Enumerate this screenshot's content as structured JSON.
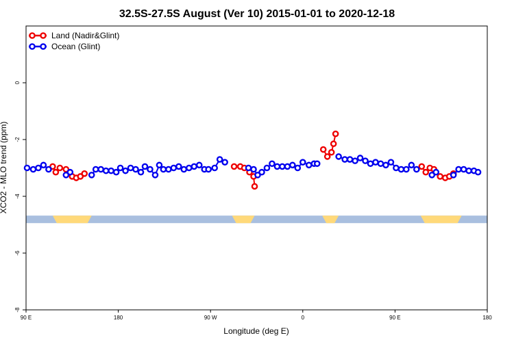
{
  "chart_data": {
    "type": "line",
    "title": "32.5S-27.5S August (Ver 10)   2015-01-01 to 2020-12-18",
    "xlabel": "Longitude (deg E)",
    "ylabel": "XCO2 - MLO trend (ppm)",
    "x_ticks": [
      {
        "value": 90,
        "label": "90 E"
      },
      {
        "value": 180,
        "label": "180"
      },
      {
        "value": 270,
        "label": "90 W"
      },
      {
        "value": 360,
        "label": "0"
      },
      {
        "value": 450,
        "label": "90 E"
      },
      {
        "value": 540,
        "label": "180"
      }
    ],
    "y_ticks": [
      {
        "value": 0,
        "label": "0"
      },
      {
        "value": -2,
        "label": "-2"
      },
      {
        "value": -4,
        "label": "-4"
      },
      {
        "value": -6,
        "label": "-6"
      },
      {
        "value": -8,
        "label": "-8"
      }
    ],
    "xlim": [
      90,
      540
    ],
    "ylim": [
      -8,
      2
    ],
    "legend_position": "top-left",
    "land_band": {
      "y": -4.8,
      "ocean_color": "#a9bfdf",
      "land_color": "#ffd97a",
      "land_ranges": [
        [
          116,
          154
        ],
        [
          291,
          313
        ],
        [
          379,
          395
        ],
        [
          475,
          515
        ]
      ]
    },
    "series": [
      {
        "name": "Land (Nadir&Glint)",
        "color": "#ee0000",
        "points": [
          [
            116,
            -2.95
          ],
          [
            119,
            -3.15
          ],
          [
            123,
            -3.0
          ],
          [
            129,
            -3.05
          ],
          [
            135,
            -3.3
          ],
          [
            139,
            -3.35
          ],
          [
            143,
            -3.3
          ],
          [
            147,
            -3.2
          ],
          [
            293,
            -2.95
          ],
          [
            299,
            -2.95
          ],
          [
            303,
            -3.0
          ],
          [
            308,
            -3.15
          ],
          [
            312,
            -3.3
          ],
          [
            313,
            -3.65
          ],
          [
            380,
            -2.35
          ],
          [
            384,
            -2.6
          ],
          [
            388,
            -2.45
          ],
          [
            390,
            -2.15
          ],
          [
            392,
            -1.8
          ],
          [
            476,
            -2.95
          ],
          [
            480,
            -3.15
          ],
          [
            484,
            -3.0
          ],
          [
            488,
            -3.05
          ],
          [
            494,
            -3.3
          ],
          [
            499,
            -3.35
          ],
          [
            503,
            -3.3
          ],
          [
            507,
            -3.2
          ]
        ]
      },
      {
        "name": "Ocean (Glint)",
        "color": "#0000ee",
        "points": [
          [
            91,
            -3.0
          ],
          [
            97,
            -3.05
          ],
          [
            102,
            -3.0
          ],
          [
            107,
            -2.9
          ],
          [
            112,
            -3.05
          ],
          [
            129,
            -3.25
          ],
          [
            133,
            -3.15
          ],
          [
            154,
            -3.25
          ],
          [
            158,
            -3.05
          ],
          [
            163,
            -3.05
          ],
          [
            168,
            -3.1
          ],
          [
            173,
            -3.1
          ],
          [
            178,
            -3.15
          ],
          [
            182,
            -3.0
          ],
          [
            187,
            -3.1
          ],
          [
            192,
            -3.0
          ],
          [
            197,
            -3.05
          ],
          [
            202,
            -3.15
          ],
          [
            206,
            -2.95
          ],
          [
            211,
            -3.05
          ],
          [
            216,
            -3.25
          ],
          [
            220,
            -2.9
          ],
          [
            224,
            -3.05
          ],
          [
            229,
            -3.05
          ],
          [
            234,
            -3.0
          ],
          [
            239,
            -2.95
          ],
          [
            244,
            -3.05
          ],
          [
            249,
            -3.0
          ],
          [
            254,
            -2.95
          ],
          [
            259,
            -2.9
          ],
          [
            264,
            -3.05
          ],
          [
            268,
            -3.05
          ],
          [
            274,
            -3.0
          ],
          [
            279,
            -2.7
          ],
          [
            284,
            -2.8
          ],
          [
            307,
            -3.0
          ],
          [
            312,
            -3.05
          ],
          [
            316,
            -3.25
          ],
          [
            320,
            -3.15
          ],
          [
            325,
            -3.0
          ],
          [
            330,
            -2.85
          ],
          [
            335,
            -2.95
          ],
          [
            340,
            -2.95
          ],
          [
            345,
            -2.95
          ],
          [
            350,
            -2.9
          ],
          [
            355,
            -3.0
          ],
          [
            360,
            -2.8
          ],
          [
            366,
            -2.9
          ],
          [
            371,
            -2.85
          ],
          [
            374,
            -2.85
          ],
          [
            395,
            -2.6
          ],
          [
            401,
            -2.7
          ],
          [
            406,
            -2.7
          ],
          [
            411,
            -2.75
          ],
          [
            416,
            -2.65
          ],
          [
            421,
            -2.75
          ],
          [
            426,
            -2.85
          ],
          [
            431,
            -2.8
          ],
          [
            436,
            -2.85
          ],
          [
            441,
            -2.9
          ],
          [
            446,
            -2.8
          ],
          [
            451,
            -3.0
          ],
          [
            456,
            -3.05
          ],
          [
            461,
            -3.05
          ],
          [
            466,
            -2.9
          ],
          [
            471,
            -3.05
          ],
          [
            486,
            -3.25
          ],
          [
            490,
            -3.15
          ],
          [
            507,
            -3.25
          ],
          [
            512,
            -3.05
          ],
          [
            517,
            -3.05
          ],
          [
            522,
            -3.1
          ],
          [
            527,
            -3.1
          ],
          [
            531,
            -3.15
          ]
        ]
      }
    ]
  }
}
